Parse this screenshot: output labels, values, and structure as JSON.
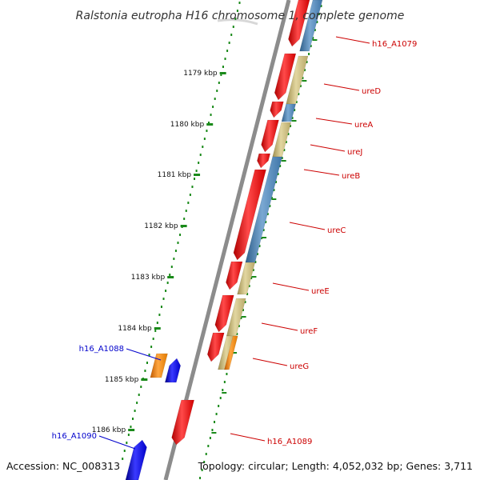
{
  "title": "Ralstonia eutropha H16 chromosome 1, complete genome",
  "accession": "Accession: NC_008313",
  "topology": "Topology: circular; Length: 4,052,032 bp; Genes: 3,711",
  "ticks": [
    {
      "label": "1179 kbp"
    },
    {
      "label": "1180 kbp"
    },
    {
      "label": "1181 kbp"
    },
    {
      "label": "1182 kbp"
    },
    {
      "label": "1183 kbp"
    },
    {
      "label": "1184 kbp"
    },
    {
      "label": "1185 kbp"
    },
    {
      "label": "1186 kbp"
    }
  ],
  "genes_right": [
    {
      "label": "h16_A1079"
    },
    {
      "label": "ureD"
    },
    {
      "label": "ureA"
    },
    {
      "label": "ureJ"
    },
    {
      "label": "ureB"
    },
    {
      "label": "ureC"
    },
    {
      "label": "ureE"
    },
    {
      "label": "ureF"
    },
    {
      "label": "ureG"
    },
    {
      "label": "h16_A1089"
    }
  ],
  "genes_left": [
    {
      "label": "h16_A1088"
    },
    {
      "label": "h16_A1090"
    }
  ],
  "colors": {
    "forward_cds": "#ff0000",
    "reverse_cds": "#0000ff",
    "orange_feature": "#ff8c00",
    "khaki_feature": "#c8b87a",
    "steel_feature": "#4682b4",
    "backbone": "#8c8c8c",
    "tick": "#1a8a1a",
    "right_label": "#cc0000",
    "left_label": "#0000cc"
  }
}
